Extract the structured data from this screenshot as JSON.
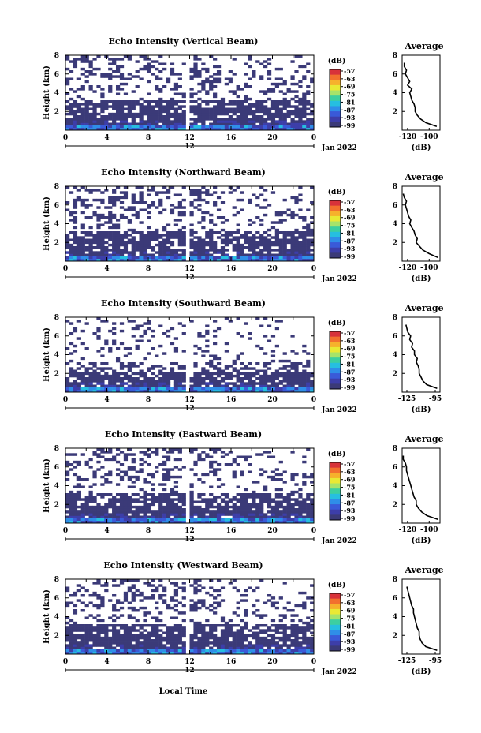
{
  "figure": {
    "xlabel": "Local Time",
    "date_label": "Jan 2022",
    "time_ticks": [
      "0",
      "4",
      "8",
      "12",
      "16",
      "20",
      "0"
    ],
    "midnight_tick": "12",
    "height_ticks": [
      "2",
      "4",
      "6",
      "8"
    ],
    "ylabel": "Height (km)",
    "colorbar_unit": "(dB)",
    "colorbar_levels": [
      "-57",
      "-63",
      "-69",
      "-75",
      "-81",
      "-87",
      "-93",
      "-99"
    ],
    "colorbar_colors": [
      "#d8323a",
      "#f2702e",
      "#f6b12c",
      "#e9e934",
      "#a6e36a",
      "#3ccfa0",
      "#26bfe0",
      "#2f8ee8",
      "#3a5ad8",
      "#3d3ea9",
      "#3b3a78"
    ],
    "profile_title": "Average",
    "profile_xlabel": "(dB)"
  },
  "chart_data": [
    {
      "type": "heatmap",
      "title": "Echo Intensity (Vertical Beam)",
      "ylabel": "Height (km)",
      "xlabel": "Local Time",
      "x_range_hours": [
        0,
        24
      ],
      "ylim_km": [
        0,
        8
      ],
      "colorbar_unit": "dB",
      "data_gap_hours": [
        11.6,
        11.9
      ],
      "profile": {
        "type": "line",
        "title": "Average",
        "xlabel": "(dB)",
        "xticks": [
          "-120",
          "-100"
        ],
        "xlim": [
          -125,
          -90
        ],
        "height_km": [
          0.4,
          0.8,
          1.2,
          1.6,
          2.0,
          2.4,
          2.8,
          3.2,
          3.6,
          4.0,
          4.4,
          4.8,
          5.2,
          5.6,
          6.0,
          6.4,
          6.8,
          7.2
        ],
        "db": [
          -93,
          -103,
          -108,
          -111,
          -113,
          -113,
          -114,
          -116,
          -117,
          -118,
          -116,
          -120,
          -118,
          -120,
          -122,
          -121,
          -123,
          -123
        ]
      }
    },
    {
      "type": "heatmap",
      "title": "Echo Intensity (Northward Beam)",
      "ylabel": "Height (km)",
      "xlabel": "Local Time",
      "x_range_hours": [
        0,
        24
      ],
      "ylim_km": [
        0,
        8
      ],
      "colorbar_unit": "dB",
      "data_gap_hours": [
        11.6,
        11.9
      ],
      "profile": {
        "type": "line",
        "title": "Average",
        "xlabel": "(dB)",
        "xticks": [
          "-120",
          "-100"
        ],
        "xlim": [
          -125,
          -90
        ],
        "height_km": [
          0.4,
          0.8,
          1.2,
          1.6,
          2.0,
          2.4,
          2.8,
          3.2,
          3.6,
          4.0,
          4.4,
          4.8,
          5.2,
          5.6,
          6.0,
          6.4,
          6.8,
          7.2
        ],
        "db": [
          -92,
          -100,
          -106,
          -109,
          -112,
          -111,
          -113,
          -114,
          -116,
          -118,
          -117,
          -119,
          -120,
          -121,
          -122,
          -121,
          -123,
          -124
        ]
      }
    },
    {
      "type": "heatmap",
      "title": "Echo Intensity (Southward Beam)",
      "ylabel": "Height (km)",
      "xlabel": "Local Time",
      "x_range_hours": [
        0,
        24
      ],
      "ylim_km": [
        0,
        8
      ],
      "colorbar_unit": "dB",
      "data_gap_hours": [
        11.6,
        11.9
      ],
      "profile": {
        "type": "line",
        "title": "Average",
        "xlabel": "(dB)",
        "xticks": [
          "-125",
          "-95"
        ],
        "xlim": [
          -130,
          -90
        ],
        "height_km": [
          0.4,
          0.8,
          1.2,
          1.6,
          2.0,
          2.4,
          2.8,
          3.2,
          3.6,
          4.0,
          4.4,
          4.8,
          5.2,
          5.6,
          6.0,
          6.4,
          6.8,
          7.2
        ],
        "db": [
          -93,
          -104,
          -108,
          -110,
          -112,
          -112,
          -113,
          -115,
          -114,
          -117,
          -117,
          -120,
          -119,
          -122,
          -121,
          -124,
          -125,
          -126
        ]
      }
    },
    {
      "type": "heatmap",
      "title": "Echo Intensity (Eastward Beam)",
      "ylabel": "Height (km)",
      "xlabel": "Local Time",
      "x_range_hours": [
        0,
        24
      ],
      "ylim_km": [
        0,
        8
      ],
      "colorbar_unit": "dB",
      "data_gap_hours": [
        11.6,
        11.9
      ],
      "profile": {
        "type": "line",
        "title": "Average",
        "xlabel": "(dB)",
        "xticks": [
          "-120",
          "-100"
        ],
        "xlim": [
          -125,
          -90
        ],
        "height_km": [
          0.4,
          0.8,
          1.2,
          1.6,
          2.0,
          2.4,
          2.8,
          3.2,
          3.6,
          4.0,
          4.4,
          4.8,
          5.2,
          5.6,
          6.0,
          6.4,
          6.8,
          7.2
        ],
        "db": [
          -92,
          -102,
          -107,
          -110,
          -112,
          -112,
          -114,
          -115,
          -116,
          -117,
          -118,
          -119,
          -120,
          -121,
          -121,
          -122,
          -124,
          -124
        ]
      }
    },
    {
      "type": "heatmap",
      "title": "Echo Intensity (Westward Beam)",
      "ylabel": "Height (km)",
      "xlabel": "Local Time",
      "x_range_hours": [
        0,
        24
      ],
      "ylim_km": [
        0,
        8
      ],
      "colorbar_unit": "dB",
      "data_gap_hours": [
        11.6,
        11.9
      ],
      "profile": {
        "type": "line",
        "title": "Average",
        "xlabel": "(dB)",
        "xticks": [
          "-125",
          "-95"
        ],
        "xlim": [
          -130,
          -90
        ],
        "height_km": [
          0.4,
          0.8,
          1.2,
          1.6,
          2.0,
          2.4,
          2.8,
          3.2,
          3.6,
          4.0,
          4.4,
          4.8,
          5.2,
          5.6,
          6.0,
          6.4,
          6.8,
          7.2
        ],
        "db": [
          -93,
          -105,
          -109,
          -111,
          -112,
          -112,
          -114,
          -115,
          -116,
          -117,
          -118,
          -118,
          -120,
          -121,
          -122,
          -123,
          -124,
          -125
        ]
      }
    }
  ]
}
